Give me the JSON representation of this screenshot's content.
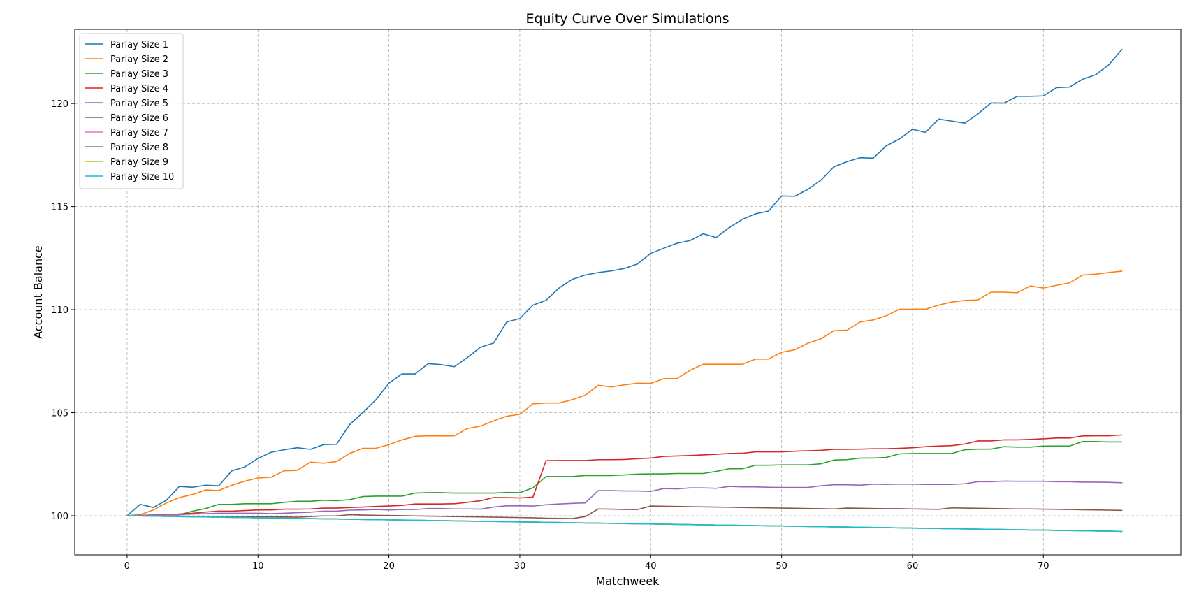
{
  "chart_data": {
    "type": "line",
    "title": "Equity Curve Over Simulations",
    "xlabel": "Matchweek",
    "ylabel": "Account Balance",
    "xlim": [
      -4.0,
      80.5
    ],
    "ylim": [
      98.1,
      123.6
    ],
    "xticks": [
      0,
      10,
      20,
      30,
      40,
      50,
      60,
      70
    ],
    "yticks": [
      100,
      105,
      110,
      115,
      120
    ],
    "grid": true,
    "legend_position": "top-left",
    "x": [
      0,
      1,
      2,
      3,
      4,
      5,
      6,
      7,
      8,
      9,
      10,
      11,
      12,
      13,
      14,
      15,
      16,
      17,
      18,
      19,
      20,
      21,
      22,
      23,
      24,
      25,
      26,
      27,
      28,
      29,
      30,
      31,
      32,
      33,
      34,
      35,
      36,
      37,
      38,
      39,
      40,
      41,
      42,
      43,
      44,
      45,
      46,
      47,
      48,
      49,
      50,
      51,
      52,
      53,
      54,
      55,
      56,
      57,
      58,
      59,
      60,
      61,
      62,
      63,
      64,
      65,
      66,
      67,
      68,
      69,
      70,
      71,
      72,
      73,
      74,
      75,
      76
    ],
    "series": [
      {
        "name": "Parlay Size 1",
        "color": "#1f77b4",
        "values": [
          100.0,
          100.55,
          100.4,
          100.75,
          101.42,
          101.38,
          101.48,
          101.45,
          102.18,
          102.37,
          102.78,
          103.08,
          103.2,
          103.3,
          103.22,
          103.45,
          103.47,
          104.42,
          105.0,
          105.62,
          106.43,
          106.88,
          106.88,
          107.38,
          107.33,
          107.23,
          107.68,
          108.18,
          108.38,
          109.4,
          109.57,
          110.22,
          110.45,
          111.05,
          111.47,
          111.68,
          111.8,
          111.88,
          112.0,
          112.22,
          112.73,
          112.98,
          113.22,
          113.35,
          113.68,
          113.5,
          113.98,
          114.38,
          114.65,
          114.78,
          115.52,
          115.5,
          115.83,
          116.28,
          116.93,
          117.18,
          117.37,
          117.35,
          117.95,
          118.28,
          118.75,
          118.6,
          119.25,
          119.15,
          119.05,
          119.5,
          120.03,
          120.02,
          120.35,
          120.35,
          120.37,
          120.77,
          120.8,
          121.18,
          121.4,
          121.88,
          122.63
        ]
      },
      {
        "name": "Parlay Size 2",
        "color": "#ff7f0e",
        "values": [
          100.0,
          100.05,
          100.28,
          100.62,
          100.88,
          101.03,
          101.25,
          101.22,
          101.48,
          101.68,
          101.83,
          101.87,
          102.18,
          102.2,
          102.6,
          102.55,
          102.63,
          103.02,
          103.27,
          103.27,
          103.45,
          103.68,
          103.85,
          103.88,
          103.87,
          103.88,
          104.23,
          104.35,
          104.6,
          104.83,
          104.92,
          105.43,
          105.47,
          105.47,
          105.63,
          105.85,
          106.33,
          106.25,
          106.35,
          106.43,
          106.42,
          106.65,
          106.65,
          107.05,
          107.35,
          107.35,
          107.35,
          107.35,
          107.6,
          107.6,
          107.93,
          108.05,
          108.37,
          108.58,
          108.98,
          109.0,
          109.4,
          109.5,
          109.7,
          110.02,
          110.02,
          110.02,
          110.22,
          110.37,
          110.45,
          110.47,
          110.85,
          110.85,
          110.82,
          111.15,
          111.05,
          111.18,
          111.3,
          111.68,
          111.72,
          111.8,
          111.87
        ]
      },
      {
        "name": "Parlay Size 3",
        "color": "#2ca02c",
        "values": [
          100.0,
          100.02,
          100.03,
          100.05,
          100.05,
          100.22,
          100.35,
          100.55,
          100.55,
          100.58,
          100.58,
          100.58,
          100.65,
          100.7,
          100.7,
          100.75,
          100.73,
          100.78,
          100.93,
          100.95,
          100.95,
          100.95,
          101.1,
          101.12,
          101.12,
          101.1,
          101.1,
          101.1,
          101.1,
          101.13,
          101.12,
          101.35,
          101.9,
          101.9,
          101.9,
          101.95,
          101.95,
          101.95,
          101.98,
          102.02,
          102.03,
          102.03,
          102.05,
          102.05,
          102.05,
          102.15,
          102.28,
          102.28,
          102.45,
          102.45,
          102.47,
          102.47,
          102.47,
          102.52,
          102.7,
          102.72,
          102.8,
          102.8,
          102.83,
          103.0,
          103.02,
          103.02,
          103.02,
          103.02,
          103.2,
          103.23,
          103.23,
          103.35,
          103.33,
          103.33,
          103.38,
          103.38,
          103.38,
          103.6,
          103.6,
          103.58,
          103.58
        ]
      },
      {
        "name": "Parlay Size 4",
        "color": "#d62728",
        "values": [
          100.0,
          100.02,
          100.03,
          100.05,
          100.08,
          100.12,
          100.18,
          100.22,
          100.22,
          100.25,
          100.28,
          100.28,
          100.32,
          100.32,
          100.33,
          100.37,
          100.37,
          100.4,
          100.42,
          100.45,
          100.47,
          100.5,
          100.57,
          100.57,
          100.57,
          100.58,
          100.65,
          100.73,
          100.88,
          100.88,
          100.86,
          100.9,
          102.67,
          102.68,
          102.68,
          102.68,
          102.72,
          102.72,
          102.73,
          102.77,
          102.8,
          102.88,
          102.9,
          102.92,
          102.95,
          102.98,
          103.02,
          103.03,
          103.1,
          103.1,
          103.1,
          103.13,
          103.15,
          103.17,
          103.22,
          103.22,
          103.23,
          103.25,
          103.25,
          103.27,
          103.3,
          103.35,
          103.38,
          103.4,
          103.48,
          103.63,
          103.63,
          103.68,
          103.68,
          103.7,
          103.73,
          103.77,
          103.77,
          103.87,
          103.88,
          103.88,
          103.92
        ]
      },
      {
        "name": "Parlay Size 5",
        "color": "#9467bd",
        "values": [
          100.0,
          100.02,
          100.03,
          100.04,
          100.05,
          100.08,
          100.1,
          100.12,
          100.12,
          100.12,
          100.12,
          100.1,
          100.12,
          100.15,
          100.17,
          100.22,
          100.22,
          100.27,
          100.28,
          100.3,
          100.28,
          100.3,
          100.3,
          100.35,
          100.35,
          100.33,
          100.33,
          100.32,
          100.42,
          100.48,
          100.48,
          100.47,
          100.53,
          100.57,
          100.6,
          100.62,
          101.22,
          101.22,
          101.2,
          101.2,
          101.18,
          101.32,
          101.3,
          101.35,
          101.35,
          101.33,
          101.42,
          101.4,
          101.4,
          101.38,
          101.37,
          101.37,
          101.37,
          101.45,
          101.5,
          101.5,
          101.48,
          101.53,
          101.52,
          101.53,
          101.53,
          101.52,
          101.52,
          101.52,
          101.55,
          101.65,
          101.65,
          101.68,
          101.67,
          101.67,
          101.67,
          101.65,
          101.65,
          101.63,
          101.63,
          101.62,
          101.6
        ]
      },
      {
        "name": "Parlay Size 6",
        "color": "#8c564b",
        "values": [
          100.0,
          99.99,
          99.99,
          99.98,
          99.98,
          99.97,
          99.97,
          99.97,
          99.96,
          99.95,
          99.95,
          99.95,
          99.94,
          99.93,
          99.96,
          99.99,
          99.99,
          100.05,
          100.03,
          100.02,
          100.01,
          100.0,
          99.99,
          99.98,
          99.97,
          99.96,
          99.95,
          99.94,
          99.93,
          99.92,
          99.91,
          99.9,
          99.88,
          99.87,
          99.86,
          99.96,
          100.33,
          100.32,
          100.3,
          100.3,
          100.47,
          100.46,
          100.45,
          100.44,
          100.43,
          100.42,
          100.41,
          100.4,
          100.39,
          100.38,
          100.37,
          100.36,
          100.35,
          100.34,
          100.33,
          100.37,
          100.36,
          100.35,
          100.34,
          100.34,
          100.33,
          100.32,
          100.31,
          100.38,
          100.37,
          100.36,
          100.35,
          100.34,
          100.33,
          100.33,
          100.32,
          100.31,
          100.3,
          100.29,
          100.28,
          100.27,
          100.26
        ]
      },
      {
        "name": "Parlay Size 7",
        "color": "#e377c2",
        "values": [
          100.0,
          99.99,
          99.98,
          99.97,
          99.96,
          99.95,
          99.94,
          99.93,
          99.92,
          99.91,
          99.9,
          99.89,
          99.88,
          99.87,
          99.86,
          99.85,
          99.84,
          99.83,
          99.82,
          99.81,
          99.8,
          99.79,
          99.78,
          99.77,
          99.76,
          99.75,
          99.74,
          99.73,
          99.72,
          99.71,
          99.7,
          99.69,
          99.68,
          99.67,
          99.66,
          99.65,
          99.64,
          99.63,
          99.62,
          99.61,
          99.6,
          99.59,
          99.58,
          99.57,
          99.56,
          99.55,
          99.54,
          99.53,
          99.52,
          99.51,
          99.5,
          99.49,
          99.48,
          99.47,
          99.46,
          99.45,
          99.44,
          99.43,
          99.42,
          99.41,
          99.4,
          99.39,
          99.38,
          99.37,
          99.36,
          99.35,
          99.34,
          99.33,
          99.32,
          99.31,
          99.3,
          99.29,
          99.28,
          99.27,
          99.26,
          99.25,
          99.24
        ]
      },
      {
        "name": "Parlay Size 8",
        "color": "#7f7f7f",
        "values": [
          100.0,
          99.99,
          99.98,
          99.97,
          99.96,
          99.95,
          99.94,
          99.93,
          99.92,
          99.91,
          99.9,
          99.89,
          99.88,
          99.87,
          99.86,
          99.85,
          99.84,
          99.83,
          99.82,
          99.81,
          99.8,
          99.79,
          99.78,
          99.77,
          99.76,
          99.75,
          99.74,
          99.73,
          99.72,
          99.71,
          99.7,
          99.69,
          99.68,
          99.67,
          99.66,
          99.65,
          99.64,
          99.63,
          99.62,
          99.61,
          99.6,
          99.59,
          99.58,
          99.57,
          99.56,
          99.55,
          99.54,
          99.53,
          99.52,
          99.51,
          99.5,
          99.49,
          99.48,
          99.47,
          99.46,
          99.45,
          99.44,
          99.43,
          99.42,
          99.41,
          99.4,
          99.39,
          99.38,
          99.37,
          99.36,
          99.35,
          99.34,
          99.33,
          99.32,
          99.31,
          99.3,
          99.29,
          99.28,
          99.27,
          99.26,
          99.25,
          99.24
        ]
      },
      {
        "name": "Parlay Size 9",
        "color": "#bcbd22",
        "values": [
          100.0,
          99.99,
          99.98,
          99.97,
          99.96,
          99.95,
          99.94,
          99.93,
          99.92,
          99.91,
          99.9,
          99.89,
          99.88,
          99.87,
          99.86,
          99.85,
          99.84,
          99.83,
          99.82,
          99.81,
          99.8,
          99.79,
          99.78,
          99.77,
          99.76,
          99.75,
          99.74,
          99.73,
          99.72,
          99.71,
          99.7,
          99.69,
          99.68,
          99.67,
          99.66,
          99.65,
          99.64,
          99.63,
          99.62,
          99.61,
          99.6,
          99.59,
          99.58,
          99.57,
          99.56,
          99.55,
          99.54,
          99.53,
          99.52,
          99.51,
          99.5,
          99.49,
          99.48,
          99.47,
          99.46,
          99.45,
          99.44,
          99.43,
          99.42,
          99.41,
          99.4,
          99.39,
          99.38,
          99.37,
          99.36,
          99.35,
          99.34,
          99.33,
          99.32,
          99.31,
          99.3,
          99.29,
          99.28,
          99.27,
          99.26,
          99.25,
          99.24
        ]
      },
      {
        "name": "Parlay Size 10",
        "color": "#17becf",
        "values": [
          100.0,
          99.99,
          99.98,
          99.97,
          99.96,
          99.95,
          99.94,
          99.93,
          99.92,
          99.91,
          99.9,
          99.89,
          99.88,
          99.87,
          99.86,
          99.85,
          99.84,
          99.83,
          99.82,
          99.81,
          99.8,
          99.79,
          99.78,
          99.77,
          99.76,
          99.75,
          99.74,
          99.73,
          99.72,
          99.71,
          99.7,
          99.69,
          99.68,
          99.67,
          99.66,
          99.65,
          99.64,
          99.63,
          99.62,
          99.61,
          99.6,
          99.59,
          99.58,
          99.57,
          99.56,
          99.55,
          99.54,
          99.53,
          99.52,
          99.51,
          99.5,
          99.49,
          99.48,
          99.47,
          99.46,
          99.45,
          99.44,
          99.43,
          99.42,
          99.41,
          99.4,
          99.39,
          99.38,
          99.37,
          99.36,
          99.35,
          99.34,
          99.33,
          99.32,
          99.31,
          99.3,
          99.29,
          99.28,
          99.27,
          99.26,
          99.25,
          99.24
        ]
      }
    ]
  }
}
